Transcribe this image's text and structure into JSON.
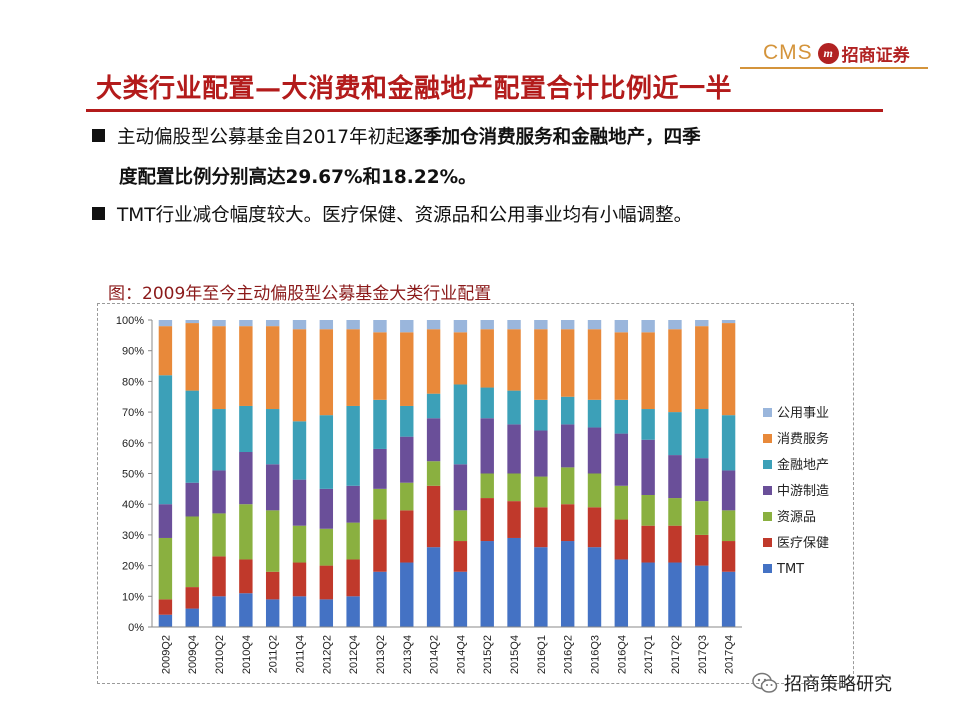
{
  "header": {
    "logo_text": "CMS",
    "logo_mark": "m",
    "logo_cn": "招商证券"
  },
  "title": "大类行业配置—大消费和金融地产配置合计比例近一半",
  "bullets": {
    "b1_part1": "主动偏股型公募基金自2017年初起",
    "b1_part2": "逐季加仓消费服务和金融地产，四季",
    "b1_part3": "度配置比例分别高达29.67%和18.22%。",
    "b2": "TMT行业减仓幅度较大。医疗保健、资源品和公用事业均有小幅调整。"
  },
  "chart_title": "图：2009年至今主动偏股型公募基金大类行业配置",
  "watermark": "招商策略研究",
  "colors": {
    "accent": "#b31b1b",
    "gold": "#d4943b",
    "TMT": "#4472c4",
    "医疗保健": "#c0392b",
    "资源品": "#8ab040",
    "中游制造": "#6a4f99",
    "金融地产": "#3ca0b8",
    "消费服务": "#e8893a",
    "公用事业": "#9ab6dc"
  },
  "chart_data": {
    "type": "bar",
    "stacked": true,
    "title": "图：2009年至今主动偏股型公募基金大类行业配置",
    "xlabel": "",
    "ylabel": "",
    "ylim": [
      0,
      100
    ],
    "y_ticks": [
      "0%",
      "10%",
      "20%",
      "30%",
      "40%",
      "50%",
      "60%",
      "70%",
      "80%",
      "90%",
      "100%"
    ],
    "legend_position": "right",
    "categories": [
      "2009Q2",
      "2009Q4",
      "2010Q2",
      "2010Q4",
      "2011Q2",
      "2011Q4",
      "2012Q2",
      "2012Q4",
      "2013Q2",
      "2013Q4",
      "2014Q2",
      "2014Q4",
      "2015Q2",
      "2015Q4",
      "2016Q1",
      "2016Q2",
      "2016Q3",
      "2016Q4",
      "2017Q1",
      "2017Q2",
      "2017Q3",
      "2017Q4"
    ],
    "series": [
      {
        "name": "TMT",
        "values": [
          4,
          6,
          10,
          11,
          9,
          10,
          9,
          10,
          18,
          21,
          26,
          18,
          28,
          29,
          26,
          28,
          26,
          22,
          21,
          21,
          20,
          18
        ]
      },
      {
        "name": "医疗保健",
        "values": [
          5,
          7,
          13,
          11,
          9,
          11,
          11,
          12,
          17,
          17,
          20,
          10,
          14,
          12,
          13,
          12,
          13,
          13,
          12,
          12,
          10,
          10
        ]
      },
      {
        "name": "资源品",
        "values": [
          20,
          23,
          14,
          18,
          20,
          12,
          12,
          12,
          10,
          9,
          8,
          10,
          8,
          9,
          10,
          12,
          11,
          11,
          10,
          9,
          11,
          10
        ]
      },
      {
        "name": "中游制造",
        "values": [
          11,
          11,
          14,
          17,
          15,
          15,
          13,
          12,
          13,
          15,
          14,
          15,
          18,
          16,
          15,
          14,
          15,
          17,
          18,
          14,
          14,
          13
        ]
      },
      {
        "name": "金融地产",
        "values": [
          42,
          30,
          20,
          15,
          18,
          19,
          24,
          26,
          16,
          10,
          8,
          26,
          10,
          11,
          10,
          9,
          9,
          11,
          10,
          14,
          16,
          18
        ]
      },
      {
        "name": "消费服务",
        "values": [
          16,
          22,
          27,
          26,
          27,
          30,
          28,
          25,
          22,
          24,
          21,
          17,
          19,
          20,
          23,
          22,
          23,
          22,
          25,
          27,
          27,
          30
        ]
      },
      {
        "name": "公用事业",
        "values": [
          2,
          1,
          2,
          2,
          2,
          3,
          3,
          3,
          4,
          4,
          3,
          4,
          3,
          3,
          3,
          3,
          3,
          4,
          4,
          3,
          2,
          1
        ]
      }
    ]
  }
}
